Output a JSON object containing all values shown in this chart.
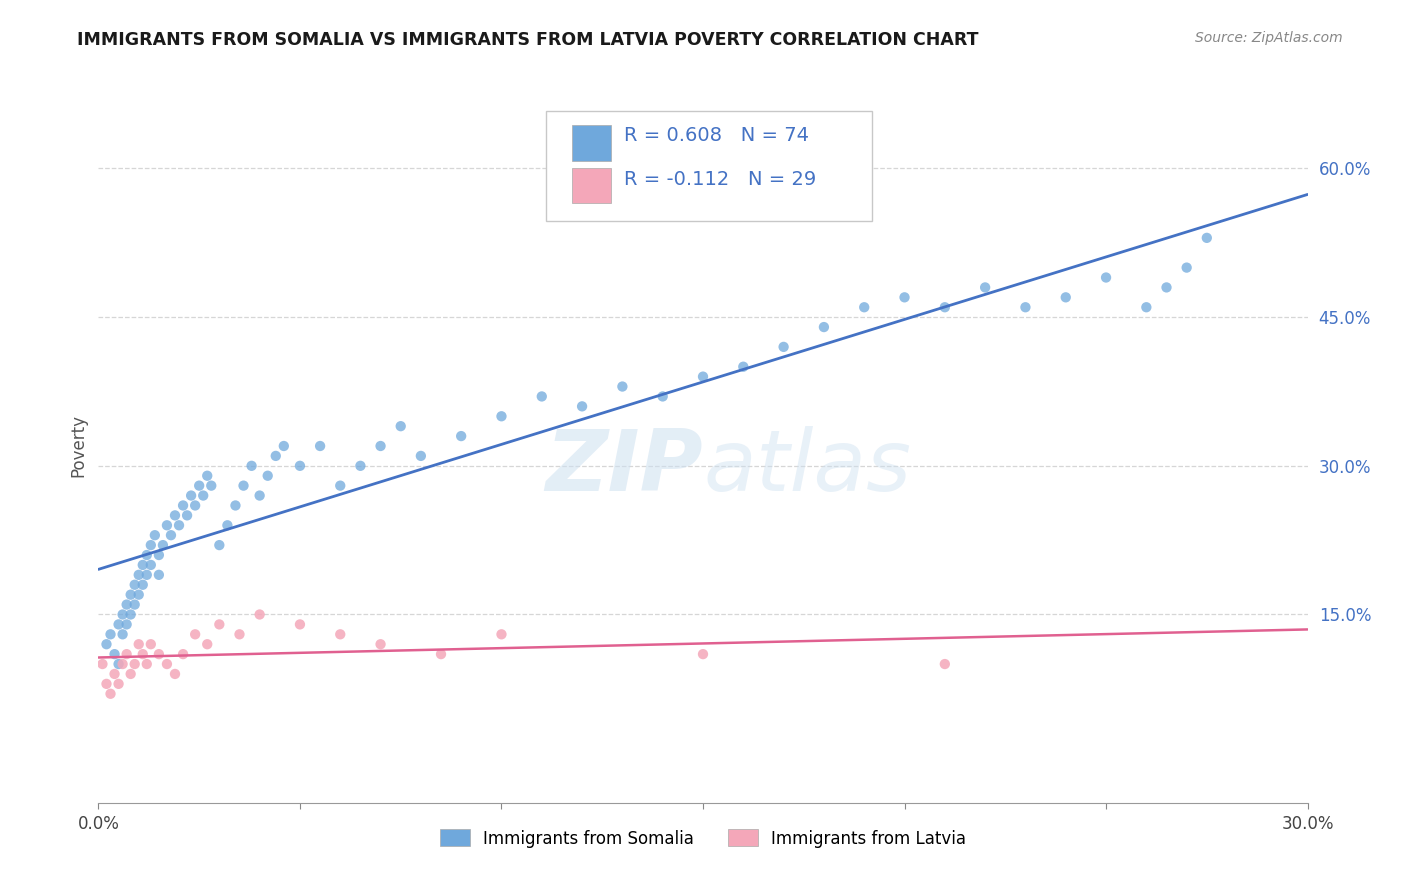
{
  "title": "IMMIGRANTS FROM SOMALIA VS IMMIGRANTS FROM LATVIA POVERTY CORRELATION CHART",
  "source": "Source: ZipAtlas.com",
  "ylabel": "Poverty",
  "right_yticks": [
    "60.0%",
    "45.0%",
    "30.0%",
    "15.0%"
  ],
  "right_ytick_vals": [
    0.6,
    0.45,
    0.3,
    0.15
  ],
  "xlim": [
    0.0,
    0.3
  ],
  "ylim": [
    -0.04,
    0.68
  ],
  "somalia_R": 0.608,
  "somalia_N": 74,
  "latvia_R": -0.112,
  "latvia_N": 29,
  "somalia_color": "#6fa8dc",
  "latvia_color": "#f4a7b9",
  "trend_somalia_color": "#4472c4",
  "trend_latvia_color": "#e06090",
  "watermark_color": "#d0e4f0",
  "legend_somalia": "Immigrants from Somalia",
  "legend_latvia": "Immigrants from Latvia",
  "somalia_x": [
    0.002,
    0.003,
    0.004,
    0.005,
    0.005,
    0.006,
    0.006,
    0.007,
    0.007,
    0.008,
    0.008,
    0.009,
    0.009,
    0.01,
    0.01,
    0.011,
    0.011,
    0.012,
    0.012,
    0.013,
    0.013,
    0.014,
    0.015,
    0.015,
    0.016,
    0.017,
    0.018,
    0.019,
    0.02,
    0.021,
    0.022,
    0.023,
    0.024,
    0.025,
    0.026,
    0.027,
    0.028,
    0.03,
    0.032,
    0.034,
    0.036,
    0.038,
    0.04,
    0.042,
    0.044,
    0.046,
    0.05,
    0.055,
    0.06,
    0.065,
    0.07,
    0.075,
    0.08,
    0.09,
    0.1,
    0.11,
    0.12,
    0.13,
    0.14,
    0.15,
    0.16,
    0.17,
    0.18,
    0.19,
    0.2,
    0.21,
    0.22,
    0.23,
    0.24,
    0.25,
    0.26,
    0.265,
    0.27,
    0.275
  ],
  "somalia_y": [
    0.12,
    0.13,
    0.11,
    0.14,
    0.1,
    0.15,
    0.13,
    0.16,
    0.14,
    0.17,
    0.15,
    0.18,
    0.16,
    0.19,
    0.17,
    0.2,
    0.18,
    0.21,
    0.19,
    0.22,
    0.2,
    0.23,
    0.21,
    0.19,
    0.22,
    0.24,
    0.23,
    0.25,
    0.24,
    0.26,
    0.25,
    0.27,
    0.26,
    0.28,
    0.27,
    0.29,
    0.28,
    0.22,
    0.24,
    0.26,
    0.28,
    0.3,
    0.27,
    0.29,
    0.31,
    0.32,
    0.3,
    0.32,
    0.28,
    0.3,
    0.32,
    0.34,
    0.31,
    0.33,
    0.35,
    0.37,
    0.36,
    0.38,
    0.37,
    0.39,
    0.4,
    0.42,
    0.44,
    0.46,
    0.47,
    0.46,
    0.48,
    0.46,
    0.47,
    0.49,
    0.46,
    0.48,
    0.5,
    0.53
  ],
  "latvia_x": [
    0.001,
    0.002,
    0.003,
    0.004,
    0.005,
    0.006,
    0.007,
    0.008,
    0.009,
    0.01,
    0.011,
    0.012,
    0.013,
    0.015,
    0.017,
    0.019,
    0.021,
    0.024,
    0.027,
    0.03,
    0.035,
    0.04,
    0.05,
    0.06,
    0.07,
    0.085,
    0.1,
    0.15,
    0.21
  ],
  "latvia_y": [
    0.1,
    0.08,
    0.07,
    0.09,
    0.08,
    0.1,
    0.11,
    0.09,
    0.1,
    0.12,
    0.11,
    0.1,
    0.12,
    0.11,
    0.1,
    0.09,
    0.11,
    0.13,
    0.12,
    0.14,
    0.13,
    0.15,
    0.14,
    0.13,
    0.12,
    0.11,
    0.13,
    0.11,
    0.1
  ]
}
